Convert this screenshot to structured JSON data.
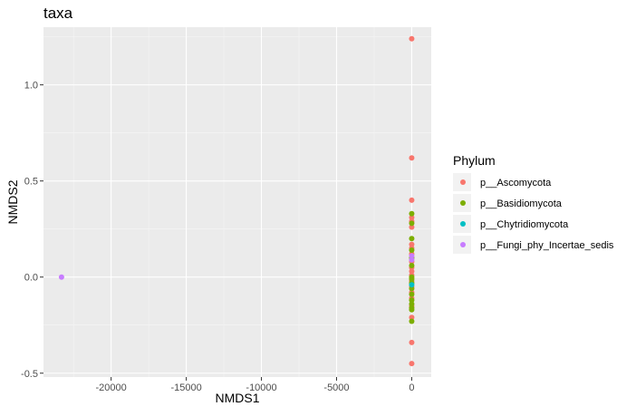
{
  "chart_data": {
    "type": "scatter",
    "title": "taxa",
    "xlabel": "NMDS1",
    "ylabel": "NMDS2",
    "xlim": [
      -24500,
      1300
    ],
    "ylim": [
      -0.52,
      1.3
    ],
    "x_ticks": [
      -20000,
      -15000,
      -10000,
      -5000,
      0
    ],
    "x_tick_labels": [
      "-20000",
      "-15000",
      "-10000",
      "-5000",
      "0"
    ],
    "y_ticks": [
      -0.5,
      0.0,
      0.5,
      1.0
    ],
    "y_tick_labels": [
      "-0.5",
      "0.0",
      "0.5",
      "1.0"
    ],
    "grid": true,
    "legend": {
      "title": "Phylum",
      "position": "right"
    },
    "series": [
      {
        "name": "p__Ascomycota",
        "color": "#F8766D",
        "points": [
          [
            0,
            1.24
          ],
          [
            0,
            0.62
          ],
          [
            0,
            0.4
          ],
          [
            0,
            0.31
          ],
          [
            0,
            0.29
          ],
          [
            0,
            0.26
          ],
          [
            0,
            0.17
          ],
          [
            0,
            0.15
          ],
          [
            0,
            0.12
          ],
          [
            0,
            0.08
          ],
          [
            0,
            0.05
          ],
          [
            0,
            0.03
          ],
          [
            0,
            0.01
          ],
          [
            0,
            -0.02
          ],
          [
            0,
            -0.05
          ],
          [
            0,
            -0.08
          ],
          [
            0,
            -0.11
          ],
          [
            0,
            -0.15
          ],
          [
            0,
            -0.21
          ],
          [
            0,
            -0.34
          ],
          [
            0,
            -0.45
          ]
        ]
      },
      {
        "name": "p__Basidiomycota",
        "color": "#7CAE00",
        "points": [
          [
            0,
            0.33
          ],
          [
            0,
            0.28
          ],
          [
            0,
            0.2
          ],
          [
            0,
            0.14
          ],
          [
            0,
            0.1
          ],
          [
            0,
            0.06
          ],
          [
            0,
            0.0
          ],
          [
            0,
            -0.01
          ],
          [
            0,
            -0.03
          ],
          [
            0,
            -0.06
          ],
          [
            0,
            -0.09
          ],
          [
            0,
            -0.12
          ],
          [
            0,
            -0.14
          ],
          [
            0,
            -0.16
          ],
          [
            0,
            -0.17
          ],
          [
            0,
            -0.23
          ]
        ]
      },
      {
        "name": "p__Chytridiomycota",
        "color": "#00BFC4",
        "points": [
          [
            0,
            -0.04
          ]
        ]
      },
      {
        "name": "p__Fungi_phy_Incertae_sedis",
        "color": "#C77CFF",
        "points": [
          [
            -23300,
            0.0
          ],
          [
            0,
            0.11
          ],
          [
            0,
            0.09
          ]
        ]
      }
    ]
  }
}
